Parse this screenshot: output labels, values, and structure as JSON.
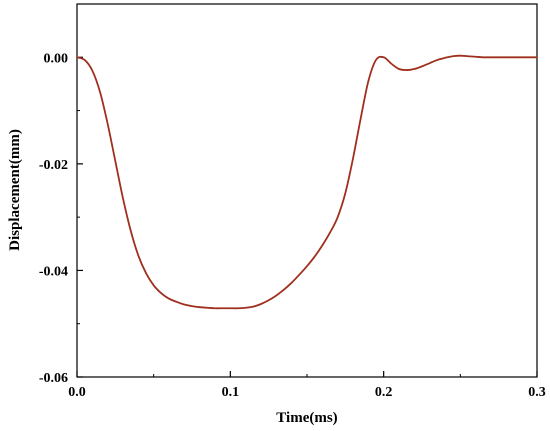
{
  "chart_data": {
    "type": "line",
    "title": "",
    "xlabel": "Time(ms)",
    "ylabel": "Displacement(mm)",
    "xlim": [
      0.0,
      0.3
    ],
    "ylim": [
      -0.06,
      0.01
    ],
    "x_ticks": [
      "0.0",
      "0.1",
      "0.2",
      "0.3"
    ],
    "y_ticks": [
      "0.00",
      "-0.02",
      "-0.04",
      "-0.06"
    ],
    "x_tick_values": [
      0.0,
      0.1,
      0.2,
      0.3
    ],
    "y_tick_values": [
      0.0,
      -0.02,
      -0.04,
      -0.06
    ],
    "grid": false,
    "legend": "none",
    "series": [
      {
        "color": "#a0301e",
        "x": [
          0.0,
          0.005,
          0.01,
          0.015,
          0.02,
          0.025,
          0.03,
          0.035,
          0.04,
          0.045,
          0.05,
          0.055,
          0.06,
          0.065,
          0.07,
          0.075,
          0.08,
          0.085,
          0.09,
          0.095,
          0.1,
          0.105,
          0.11,
          0.115,
          0.12,
          0.125,
          0.13,
          0.135,
          0.14,
          0.145,
          0.15,
          0.155,
          0.16,
          0.165,
          0.17,
          0.175,
          0.18,
          0.185,
          0.19,
          0.195,
          0.2,
          0.205,
          0.21,
          0.215,
          0.22,
          0.225,
          0.23,
          0.235,
          0.24,
          0.245,
          0.25,
          0.255,
          0.26,
          0.265,
          0.27,
          0.28,
          0.29,
          0.3
        ],
        "y": [
          0.0,
          -0.0005,
          -0.0025,
          -0.0065,
          -0.0125,
          -0.0195,
          -0.0265,
          -0.0325,
          -0.0372,
          -0.0405,
          -0.0428,
          -0.0443,
          -0.0453,
          -0.0459,
          -0.0464,
          -0.0467,
          -0.0469,
          -0.047,
          -0.0471,
          -0.0471,
          -0.0471,
          -0.0471,
          -0.047,
          -0.0468,
          -0.0463,
          -0.0456,
          -0.0447,
          -0.0436,
          -0.0423,
          -0.0408,
          -0.0392,
          -0.0374,
          -0.0353,
          -0.0329,
          -0.03,
          -0.0255,
          -0.019,
          -0.0115,
          -0.0045,
          -0.0005,
          0.0,
          -0.0012,
          -0.0022,
          -0.0024,
          -0.0022,
          -0.0017,
          -0.0011,
          -0.0005,
          -0.0001,
          0.0002,
          0.0003,
          0.0002,
          0.0001,
          0.0,
          0.0,
          0.0,
          0.0,
          0.0
        ]
      }
    ]
  }
}
